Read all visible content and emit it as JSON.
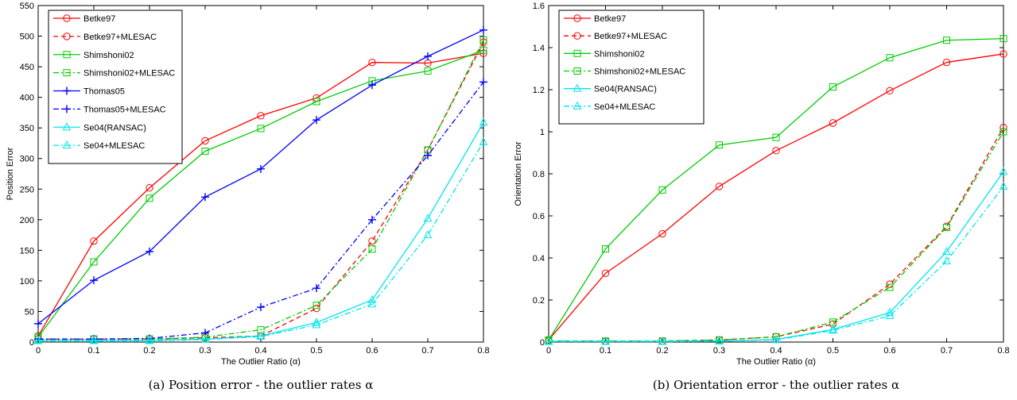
{
  "chart_data": [
    {
      "type": "line",
      "xlabel": "The Outlier Ratio (α)",
      "ylabel": "Position Error",
      "caption": "(a)  Position error - the outlier rates α",
      "xlim": [
        0,
        0.8
      ],
      "ylim": [
        0,
        550
      ],
      "xticks": [
        "0",
        "0.1",
        "0.2",
        "0.3",
        "0.4",
        "0.5",
        "0.6",
        "0.7",
        "0.8"
      ],
      "yticks": [
        "0",
        "50",
        "100",
        "150",
        "200",
        "250",
        "300",
        "350",
        "400",
        "450",
        "500",
        "550"
      ],
      "grid": false,
      "legend_position": "top-left",
      "x": [
        0,
        0.1,
        0.2,
        0.3,
        0.4,
        0.5,
        0.6,
        0.7,
        0.8
      ],
      "series": [
        {
          "name": "Betke97",
          "color": "#ff0000",
          "dash": "solid",
          "marker": "circle",
          "values": [
            10,
            165,
            252,
            329,
            370,
            399,
            457,
            456,
            472
          ]
        },
        {
          "name": "Betke97+MLESAC",
          "color": "#ff0000",
          "dash": "dashed",
          "marker": "circle",
          "values": [
            5,
            5,
            5,
            7,
            10,
            55,
            165,
            314,
            490
          ]
        },
        {
          "name": "Shimshoni02",
          "color": "#00cc00",
          "dash": "solid",
          "marker": "square",
          "values": [
            8,
            131,
            235,
            312,
            349,
            393,
            427,
            443,
            477
          ]
        },
        {
          "name": "Shimshoni02+MLESAC",
          "color": "#00cc00",
          "dash": "dashdot",
          "marker": "square",
          "values": [
            5,
            5,
            5,
            8,
            20,
            60,
            152,
            314,
            494
          ]
        },
        {
          "name": "Thomas05",
          "color": "#0000ff",
          "dash": "solid",
          "marker": "plus",
          "values": [
            30,
            101,
            148,
            237,
            283,
            363,
            420,
            467,
            510
          ]
        },
        {
          "name": "Thomas05+MLESAC",
          "color": "#0000ff",
          "dash": "dashdot",
          "marker": "plus",
          "values": [
            5,
            5,
            6,
            15,
            57,
            88,
            200,
            305,
            425
          ]
        },
        {
          "name": "Se04(RANSAC)",
          "color": "#00e5ee",
          "dash": "solid",
          "marker": "triangle",
          "values": [
            3,
            3,
            3,
            5,
            10,
            32,
            69,
            202,
            359
          ]
        },
        {
          "name": "Se04+MLESAC",
          "color": "#00e5ee",
          "dash": "dashdot",
          "marker": "triangle",
          "values": [
            2,
            2,
            2,
            4,
            9,
            28,
            62,
            175,
            327
          ]
        }
      ]
    },
    {
      "type": "line",
      "xlabel": "The Outlier Ratio (α)",
      "ylabel": "Orientation Error",
      "caption": "(b)  Orientation error - the outlier rates α",
      "xlim": [
        0,
        0.8
      ],
      "ylim": [
        0,
        1.6
      ],
      "xticks": [
        "0",
        "0.1",
        "0.2",
        "0.3",
        "0.4",
        "0.5",
        "0.6",
        "0.7",
        "0.8"
      ],
      "yticks": [
        "0",
        "0.2",
        "0.4",
        "0.6",
        "0.8",
        "1",
        "1.2",
        "1.4",
        "1.6"
      ],
      "grid": false,
      "legend_position": "top-left",
      "x": [
        0,
        0.1,
        0.2,
        0.3,
        0.4,
        0.5,
        0.6,
        0.7,
        0.8
      ],
      "series": [
        {
          "name": "Betke97",
          "color": "#ff0000",
          "dash": "solid",
          "marker": "circle",
          "values": [
            0.01,
            0.327,
            0.515,
            0.74,
            0.91,
            1.042,
            1.195,
            1.33,
            1.37
          ]
        },
        {
          "name": "Betke97+MLESAC",
          "color": "#ff0000",
          "dash": "dashed",
          "marker": "circle",
          "values": [
            0.005,
            0.005,
            0.005,
            0.01,
            0.025,
            0.085,
            0.275,
            0.55,
            1.02
          ]
        },
        {
          "name": "Shimshoni02",
          "color": "#00cc00",
          "dash": "solid",
          "marker": "square",
          "values": [
            0.01,
            0.443,
            0.723,
            0.937,
            0.973,
            1.213,
            1.352,
            1.435,
            1.443
          ]
        },
        {
          "name": "Shimshoni02+MLESAC",
          "color": "#00cc00",
          "dash": "dashdot",
          "marker": "square",
          "values": [
            0.005,
            0.005,
            0.005,
            0.01,
            0.025,
            0.095,
            0.26,
            0.545,
            1.0
          ]
        },
        {
          "name": "Se04(RANSAC)",
          "color": "#00e5ee",
          "dash": "solid",
          "marker": "triangle",
          "values": [
            0.003,
            0.003,
            0.003,
            0.005,
            0.012,
            0.06,
            0.14,
            0.43,
            0.81
          ]
        },
        {
          "name": "Se04+MLESAC",
          "color": "#00e5ee",
          "dash": "dashdot",
          "marker": "triangle",
          "values": [
            0.002,
            0.002,
            0.002,
            0.004,
            0.01,
            0.055,
            0.125,
            0.385,
            0.74
          ]
        }
      ]
    }
  ]
}
